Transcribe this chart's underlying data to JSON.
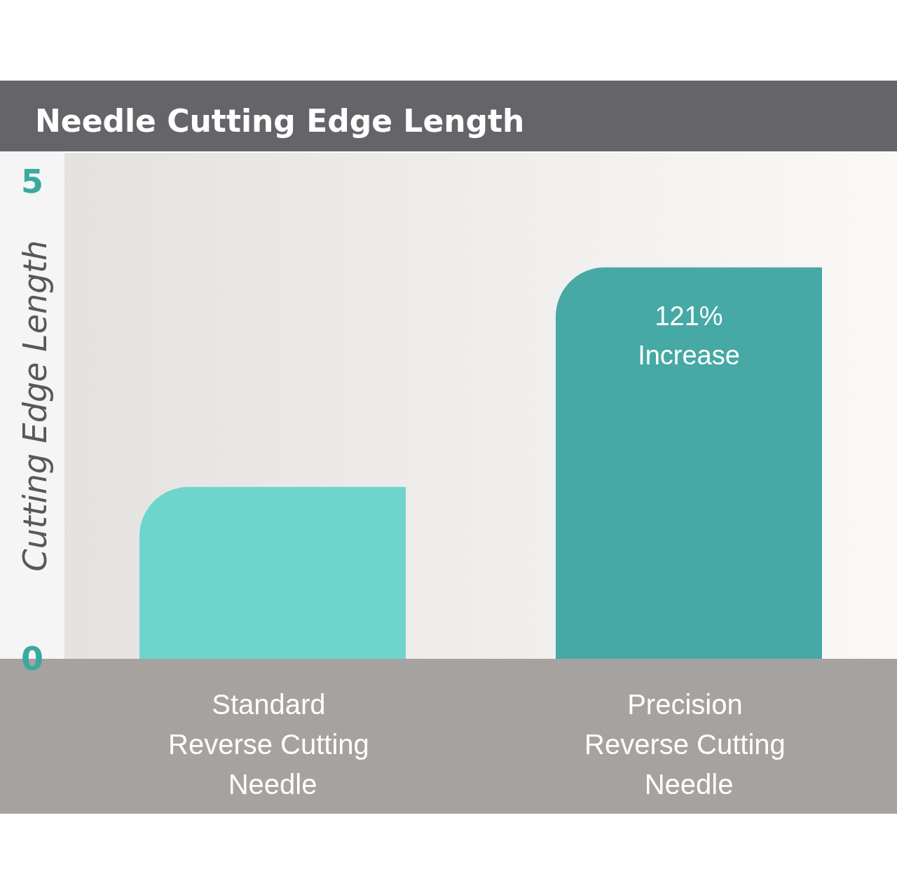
{
  "chart_data": {
    "type": "bar",
    "title": "Needle Cutting Edge Length",
    "ylabel": "Cutting Edge Length",
    "categories": [
      "Standard Reverse Cutting Needle",
      "Precision Reverse Cutting Needle"
    ],
    "values": [
      1.8,
      4.1
    ],
    "colors": [
      "#6dd5cc",
      "#46a9a5"
    ],
    "ylim": [
      0,
      5.3
    ],
    "yticks": [
      0,
      5
    ],
    "grid": false,
    "annotations": [
      "121% Increase"
    ]
  }
}
